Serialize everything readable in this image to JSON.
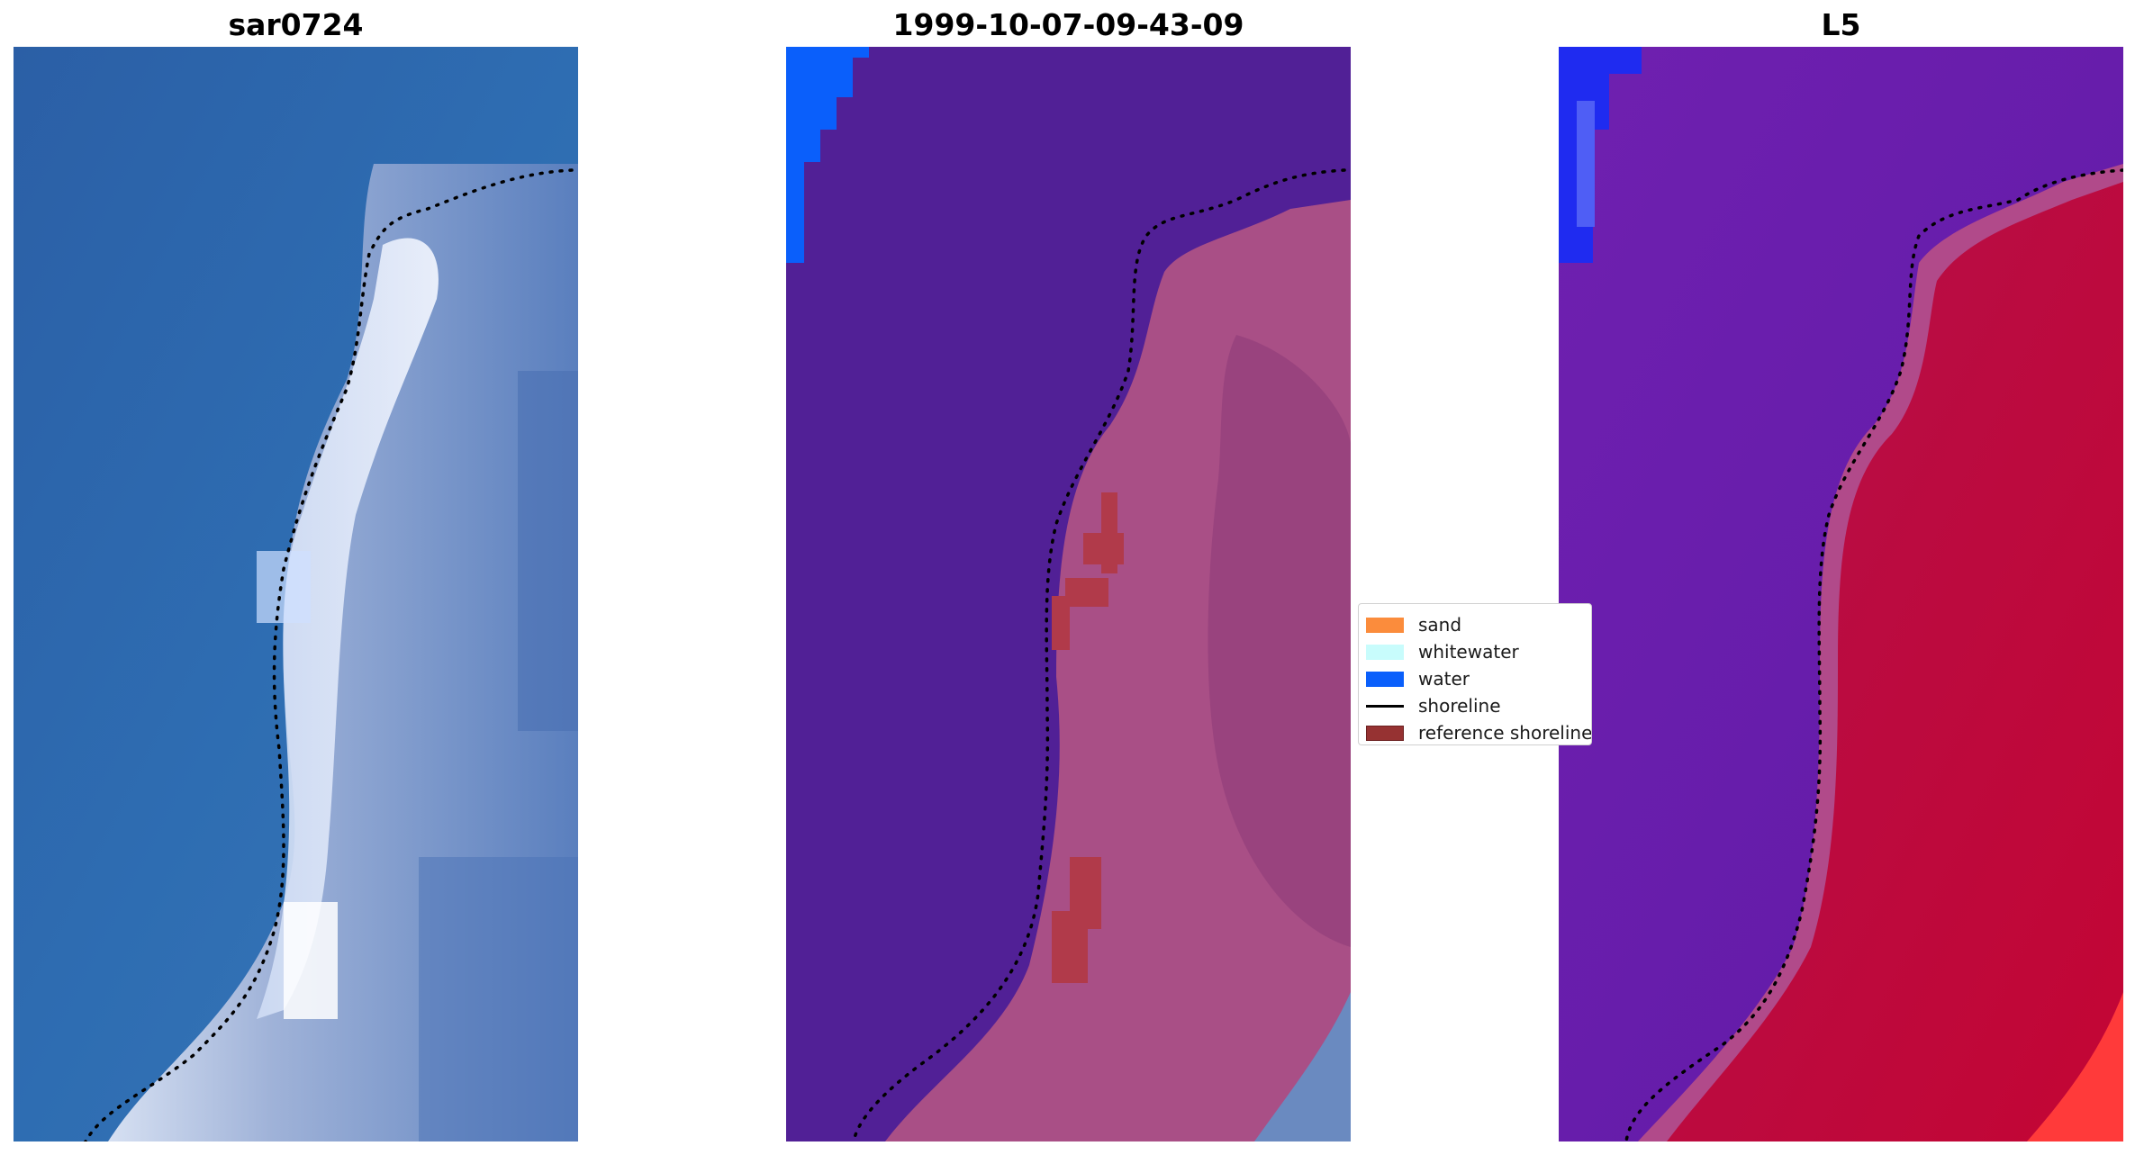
{
  "panels": [
    {
      "title": "sar0724"
    },
    {
      "title": "1999-10-07-09-43-09"
    },
    {
      "title": "L5"
    }
  ],
  "legend": {
    "items": [
      {
        "label": "sand",
        "color": "#fb8c3c"
      },
      {
        "label": "whitewater",
        "color": "#c8fcfc"
      },
      {
        "label": "water",
        "color": "#0a5ffb"
      },
      {
        "label": "shoreline",
        "color": "#000000"
      },
      {
        "label": "reference shoreline",
        "color": "#963232"
      }
    ]
  },
  "colors": {
    "ocean_rgb": "#2e68b0",
    "classified_water": "#512096",
    "beach": "#b0557f",
    "index_water": "#6a1aa8",
    "index_land": "#c80636"
  }
}
